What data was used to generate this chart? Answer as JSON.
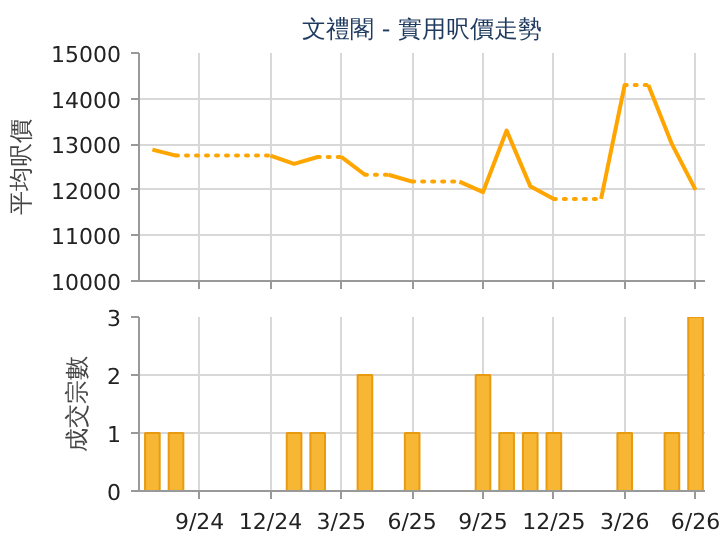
{
  "chart_data": [
    {
      "type": "line",
      "title": "文禮閣 - 實用呎價走勢",
      "ylabel": "平均呎價",
      "xlim": [
        "2024-06-14",
        "2026-06-13"
      ],
      "ylim": [
        10000,
        15000
      ],
      "yticks": [
        10000,
        11000,
        12000,
        13000,
        14000,
        15000
      ],
      "xticks": [
        {
          "value": "2024-09",
          "label": null
        },
        {
          "value": "2024-12",
          "label": null
        },
        {
          "value": "2025-03",
          "label": null
        },
        {
          "value": "2025-06",
          "label": null
        },
        {
          "value": "2025-09",
          "label": null
        },
        {
          "value": "2025-12",
          "label": null
        },
        {
          "value": "2026-03",
          "label": null
        },
        {
          "value": "2026-06",
          "label": null
        }
      ],
      "tick_labels": "y",
      "grid": true,
      "color": "#ffa500",
      "series": [
        {
          "line_style": "solid",
          "x": [
            "2024-07",
            "2024-08"
          ],
          "values": [
            12880,
            12750
          ]
        },
        {
          "line_style": "dotted",
          "x": [
            "2024-08",
            "2024-12"
          ],
          "values": [
            12750,
            12750
          ]
        },
        {
          "line_style": "solid",
          "x": [
            "2024-12",
            "2025-01",
            "2025-02"
          ],
          "values": [
            12750,
            12570,
            12720
          ]
        },
        {
          "line_style": "dotted",
          "x": [
            "2025-02",
            "2025-03"
          ],
          "values": [
            12720,
            12720
          ]
        },
        {
          "line_style": "solid",
          "x": [
            "2025-03",
            "2025-04"
          ],
          "values": [
            12720,
            12330
          ]
        },
        {
          "line_style": "dotted",
          "x": [
            "2025-04",
            "2025-05"
          ],
          "values": [
            12330,
            12330
          ]
        },
        {
          "line_style": "solid",
          "x": [
            "2025-05",
            "2025-06"
          ],
          "values": [
            12330,
            12180
          ]
        },
        {
          "line_style": "dotted",
          "x": [
            "2025-06",
            "2025-08"
          ],
          "values": [
            12180,
            12180
          ]
        },
        {
          "line_style": "solid",
          "x": [
            "2025-08",
            "2025-09",
            "2025-10",
            "2025-11",
            "2025-12"
          ],
          "values": [
            12180,
            11950,
            13300,
            12080,
            11800
          ]
        },
        {
          "line_style": "dotted",
          "x": [
            "2025-12",
            "2026-02"
          ],
          "values": [
            11800,
            11800
          ]
        },
        {
          "line_style": "solid",
          "x": [
            "2026-02",
            "2026-03"
          ],
          "values": [
            11800,
            14300
          ]
        },
        {
          "line_style": "dotted",
          "x": [
            "2026-03",
            "2026-04"
          ],
          "values": [
            14300,
            14300
          ]
        },
        {
          "line_style": "solid",
          "x": [
            "2026-04",
            "2026-05",
            "2026-06"
          ],
          "values": [
            14300,
            13000,
            12000
          ]
        }
      ]
    },
    {
      "type": "bar",
      "ylabel": "成交宗數",
      "xlim": [
        "2024-06-14",
        "2026-06-13"
      ],
      "ylim": [
        0,
        3
      ],
      "yticks": [
        0,
        1,
        2,
        3
      ],
      "xticks": [
        {
          "value": "2024-09",
          "label": "9/24"
        },
        {
          "value": "2024-12",
          "label": "12/24"
        },
        {
          "value": "2025-03",
          "label": "3/25"
        },
        {
          "value": "2025-06",
          "label": "6/25"
        },
        {
          "value": "2025-09",
          "label": "9/25"
        },
        {
          "value": "2025-12",
          "label": "12/25"
        },
        {
          "value": "2026-03",
          "label": "3/26"
        },
        {
          "value": "2026-06",
          "label": "6/26"
        }
      ],
      "grid": true,
      "color": "#f7b634",
      "x": [
        "2024-07",
        "2024-08",
        "2025-01",
        "2025-02",
        "2025-04",
        "2025-06",
        "2025-09",
        "2025-10",
        "2025-11",
        "2025-12",
        "2026-03",
        "2026-05",
        "2026-06"
      ],
      "values": [
        1,
        1,
        1,
        1,
        2,
        1,
        2,
        1,
        1,
        1,
        1,
        1,
        3
      ]
    }
  ]
}
